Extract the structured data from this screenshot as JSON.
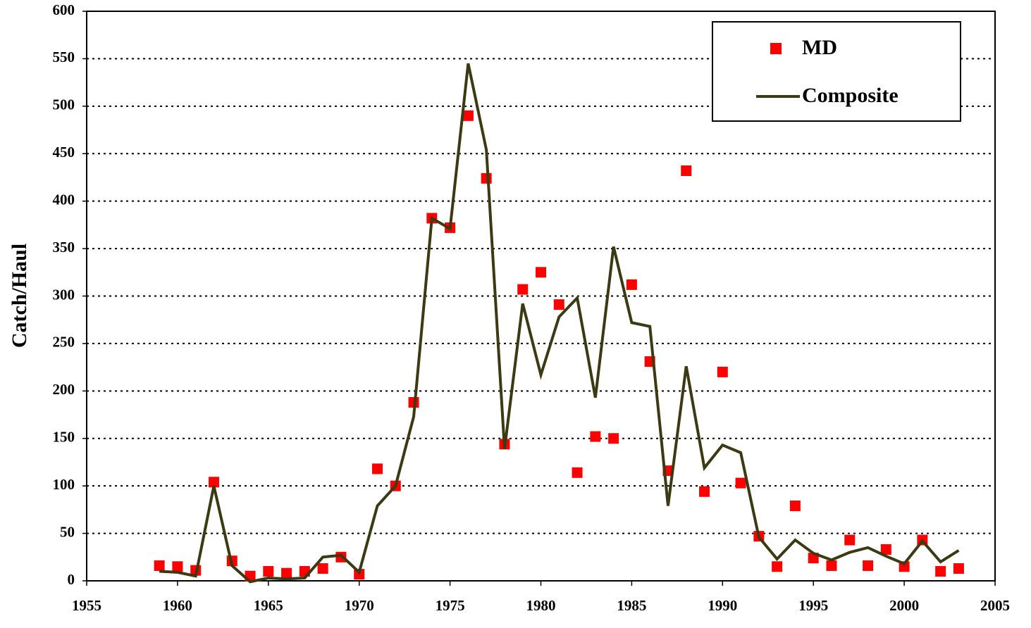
{
  "chart_data": {
    "type": "line",
    "y_label": "Catch/Haul",
    "x": [
      1959,
      1960,
      1961,
      1962,
      1963,
      1964,
      1965,
      1966,
      1967,
      1968,
      1969,
      1970,
      1971,
      1972,
      1973,
      1974,
      1975,
      1976,
      1977,
      1978,
      1979,
      1980,
      1981,
      1982,
      1983,
      1984,
      1985,
      1986,
      1987,
      1988,
      1989,
      1990,
      1991,
      1992,
      1993,
      1994,
      1995,
      1996,
      1997,
      1998,
      1999,
      2000,
      2001,
      2002,
      2003
    ],
    "series": [
      {
        "name": "MD",
        "color": "#ff0000",
        "style": "markers",
        "values": [
          16,
          15,
          11,
          104,
          21,
          5,
          10,
          8,
          10,
          13,
          25,
          7,
          118,
          100,
          188,
          382,
          372,
          490,
          424,
          144,
          307,
          325,
          291,
          114,
          152,
          150,
          312,
          231,
          116,
          432,
          94,
          220,
          103,
          47,
          15,
          79,
          24,
          16,
          43,
          16,
          33,
          15,
          43,
          10,
          13
        ]
      },
      {
        "name": "Composite",
        "color": "#3b3a12",
        "style": "line",
        "values": [
          10,
          9,
          5,
          100,
          16,
          -1,
          3,
          2,
          3,
          25,
          27,
          9,
          79,
          100,
          173,
          382,
          371,
          545,
          454,
          139,
          292,
          217,
          278,
          298,
          193,
          352,
          272,
          268,
          79,
          226,
          119,
          143,
          135,
          46,
          23,
          43,
          29,
          22,
          30,
          35,
          26,
          18,
          42,
          20,
          32
        ]
      }
    ],
    "xlim": [
      1955,
      2005
    ],
    "xticks": [
      1955,
      1960,
      1965,
      1970,
      1975,
      1980,
      1985,
      1990,
      1995,
      2000,
      2005
    ],
    "ylim": [
      0,
      600
    ],
    "yticks": [
      0,
      50,
      100,
      150,
      200,
      250,
      300,
      350,
      400,
      450,
      500,
      550,
      600
    ],
    "grid": true,
    "legend": "top-right"
  }
}
